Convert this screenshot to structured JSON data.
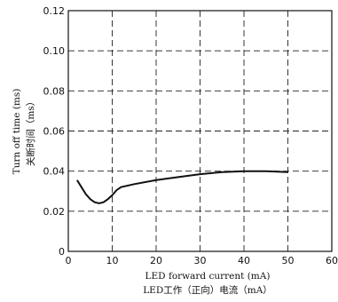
{
  "chart_data": {
    "type": "line",
    "title": "",
    "xlabel": [
      "LED forward current (mA)",
      "LED工作（正向）电流（mA）"
    ],
    "ylabel": [
      "Turn off time (ms)",
      "关断时间（ms）"
    ],
    "xlim": [
      0,
      60
    ],
    "ylim": [
      0,
      0.12
    ],
    "grid": true,
    "x_ticks": [
      "0",
      "10",
      "20",
      "30",
      "40",
      "50",
      "60"
    ],
    "y_ticks": [
      "0",
      "0.02",
      "0.04",
      "0.06",
      "0.08",
      "0.10",
      "0.12"
    ],
    "series": [
      {
        "points": [
          [
            2,
            0.0355
          ],
          [
            3,
            0.032
          ],
          [
            4,
            0.0285
          ],
          [
            5,
            0.026
          ],
          [
            6,
            0.0245
          ],
          [
            7,
            0.024
          ],
          [
            8,
            0.0245
          ],
          [
            9,
            0.026
          ],
          [
            10,
            0.028
          ],
          [
            11,
            0.0305
          ],
          [
            12,
            0.032
          ],
          [
            15,
            0.0335
          ],
          [
            20,
            0.0355
          ],
          [
            25,
            0.037
          ],
          [
            30,
            0.0385
          ],
          [
            35,
            0.0395
          ],
          [
            40,
            0.04
          ],
          [
            45,
            0.04
          ],
          [
            50,
            0.0395
          ]
        ]
      }
    ],
    "colors": {
      "line": "#111111",
      "grid": "#222222"
    }
  }
}
